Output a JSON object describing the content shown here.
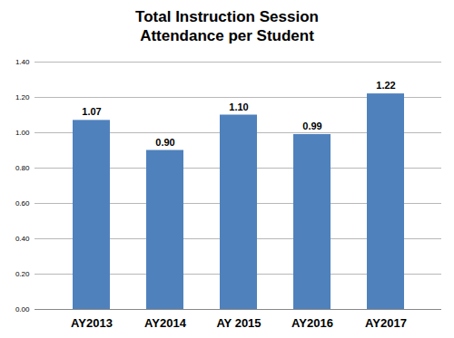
{
  "chart_data": {
    "type": "bar",
    "title": "Total Instruction Session Attendance per Student",
    "categories": [
      "AY2013",
      "AY2014",
      "AY 2015",
      "AY2016",
      "AY2017"
    ],
    "values": [
      1.07,
      0.9,
      1.1,
      0.99,
      1.22
    ],
    "value_labels": [
      "1.07",
      "0.90",
      "1.10",
      "0.99",
      "1.22"
    ],
    "color": "#4f81bd",
    "ylim": [
      0,
      1.4
    ],
    "yticks": [
      {
        "value": 0,
        "label": "0.00"
      },
      {
        "value": 0.2,
        "label": "0.20"
      },
      {
        "value": 0.4,
        "label": "0.40"
      },
      {
        "value": 0.6,
        "label": "0.60"
      },
      {
        "value": 0.8,
        "label": "0.80"
      },
      {
        "value": 1,
        "label": "1.00"
      },
      {
        "value": 1.2,
        "label": "1.20"
      },
      {
        "value": 1.4,
        "label": "1.40"
      }
    ],
    "grid": true,
    "data_labels": true
  }
}
